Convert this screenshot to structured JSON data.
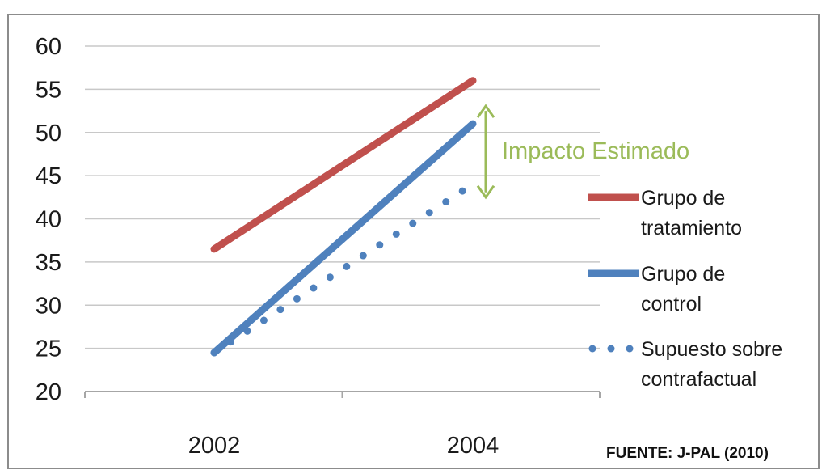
{
  "chart_data": {
    "type": "line",
    "categories": [
      "2002",
      "2004"
    ],
    "ylim": [
      20,
      60
    ],
    "yticks": [
      20,
      25,
      30,
      35,
      40,
      45,
      50,
      55,
      60
    ],
    "grid": true,
    "legend_position": "right",
    "series": [
      {
        "name": "Grupo de tratamiento",
        "values": [
          36.5,
          56
        ],
        "color": "#c0504d",
        "style": "solid"
      },
      {
        "name": "Grupo de control",
        "values": [
          24.5,
          51
        ],
        "color": "#4f81bd",
        "style": "solid"
      },
      {
        "name": "Supuesto sobre contrafactual",
        "values": [
          24.5,
          44
        ],
        "color": "#4f81bd",
        "style": "dotted"
      }
    ],
    "annotation": {
      "text": "Impacto Estimado",
      "from": 44,
      "to": 51,
      "color": "#9bbb59"
    },
    "source": "FUENTE: J-PAL (2010)"
  }
}
